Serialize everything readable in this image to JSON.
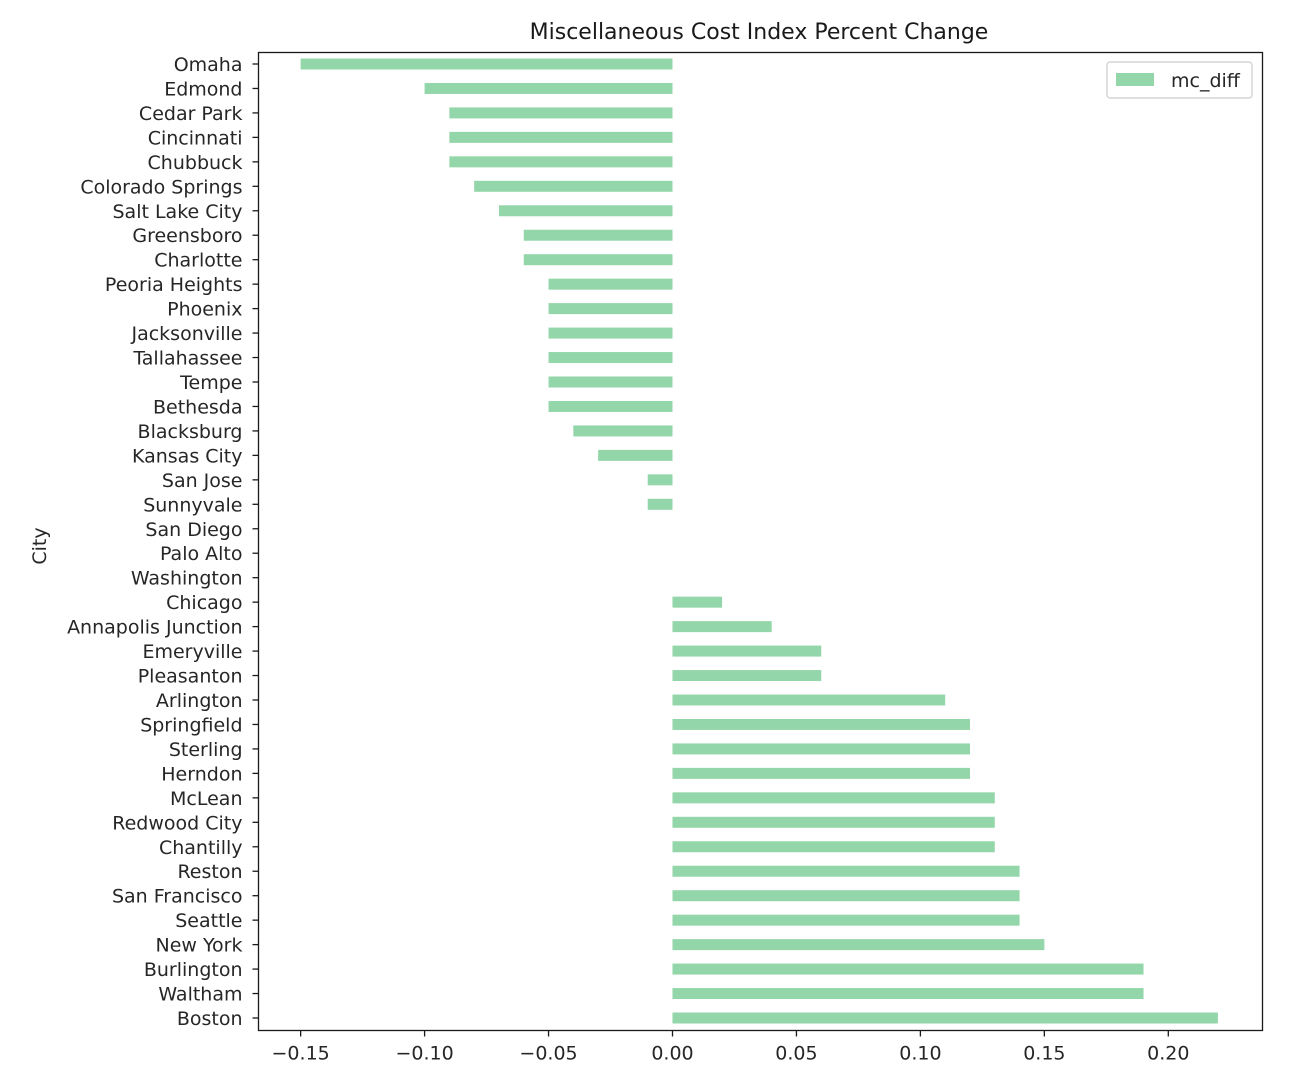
{
  "chart_data": {
    "type": "bar",
    "orientation": "horizontal",
    "title": "Miscellaneous Cost Index Percent Change",
    "xlabel": "",
    "ylabel": "City",
    "xlim": [
      -0.167,
      0.238
    ],
    "x_ticks": [
      -0.15,
      -0.1,
      -0.05,
      0.0,
      0.05,
      0.1,
      0.15,
      0.2
    ],
    "x_tick_labels": [
      "−0.15",
      "−0.10",
      "−0.05",
      "0.00",
      "0.05",
      "0.10",
      "0.15",
      "0.20"
    ],
    "grid": false,
    "legend_position": "top-right",
    "bar_color": "#93d6a9",
    "categories": [
      "Omaha",
      "Edmond",
      "Cedar Park",
      "Cincinnati",
      "Chubbuck",
      "Colorado Springs",
      "Salt Lake City",
      "Greensboro",
      "Charlotte",
      "Peoria Heights",
      "Phoenix",
      "Jacksonville",
      "Tallahassee",
      "Tempe",
      "Bethesda",
      "Blacksburg",
      "Kansas City",
      "San Jose",
      "Sunnyvale",
      "San Diego",
      "Palo Alto",
      "Washington",
      "Chicago",
      "Annapolis Junction",
      "Emeryville",
      "Pleasanton",
      "Arlington",
      "Springfield",
      "Sterling",
      "Herndon",
      "McLean",
      "Redwood City",
      "Chantilly",
      "Reston",
      "San Francisco",
      "Seattle",
      "New York",
      "Burlington",
      "Waltham",
      "Boston"
    ],
    "series": [
      {
        "name": "mc_diff",
        "values": [
          -0.15,
          -0.1,
          -0.09,
          -0.09,
          -0.09,
          -0.08,
          -0.07,
          -0.06,
          -0.06,
          -0.05,
          -0.05,
          -0.05,
          -0.05,
          -0.05,
          -0.05,
          -0.04,
          -0.03,
          -0.01,
          -0.01,
          0.0,
          0.0,
          0.0,
          0.02,
          0.04,
          0.06,
          0.06,
          0.11,
          0.12,
          0.12,
          0.12,
          0.13,
          0.13,
          0.13,
          0.14,
          0.14,
          0.14,
          0.15,
          0.19,
          0.19,
          0.22
        ]
      }
    ]
  }
}
